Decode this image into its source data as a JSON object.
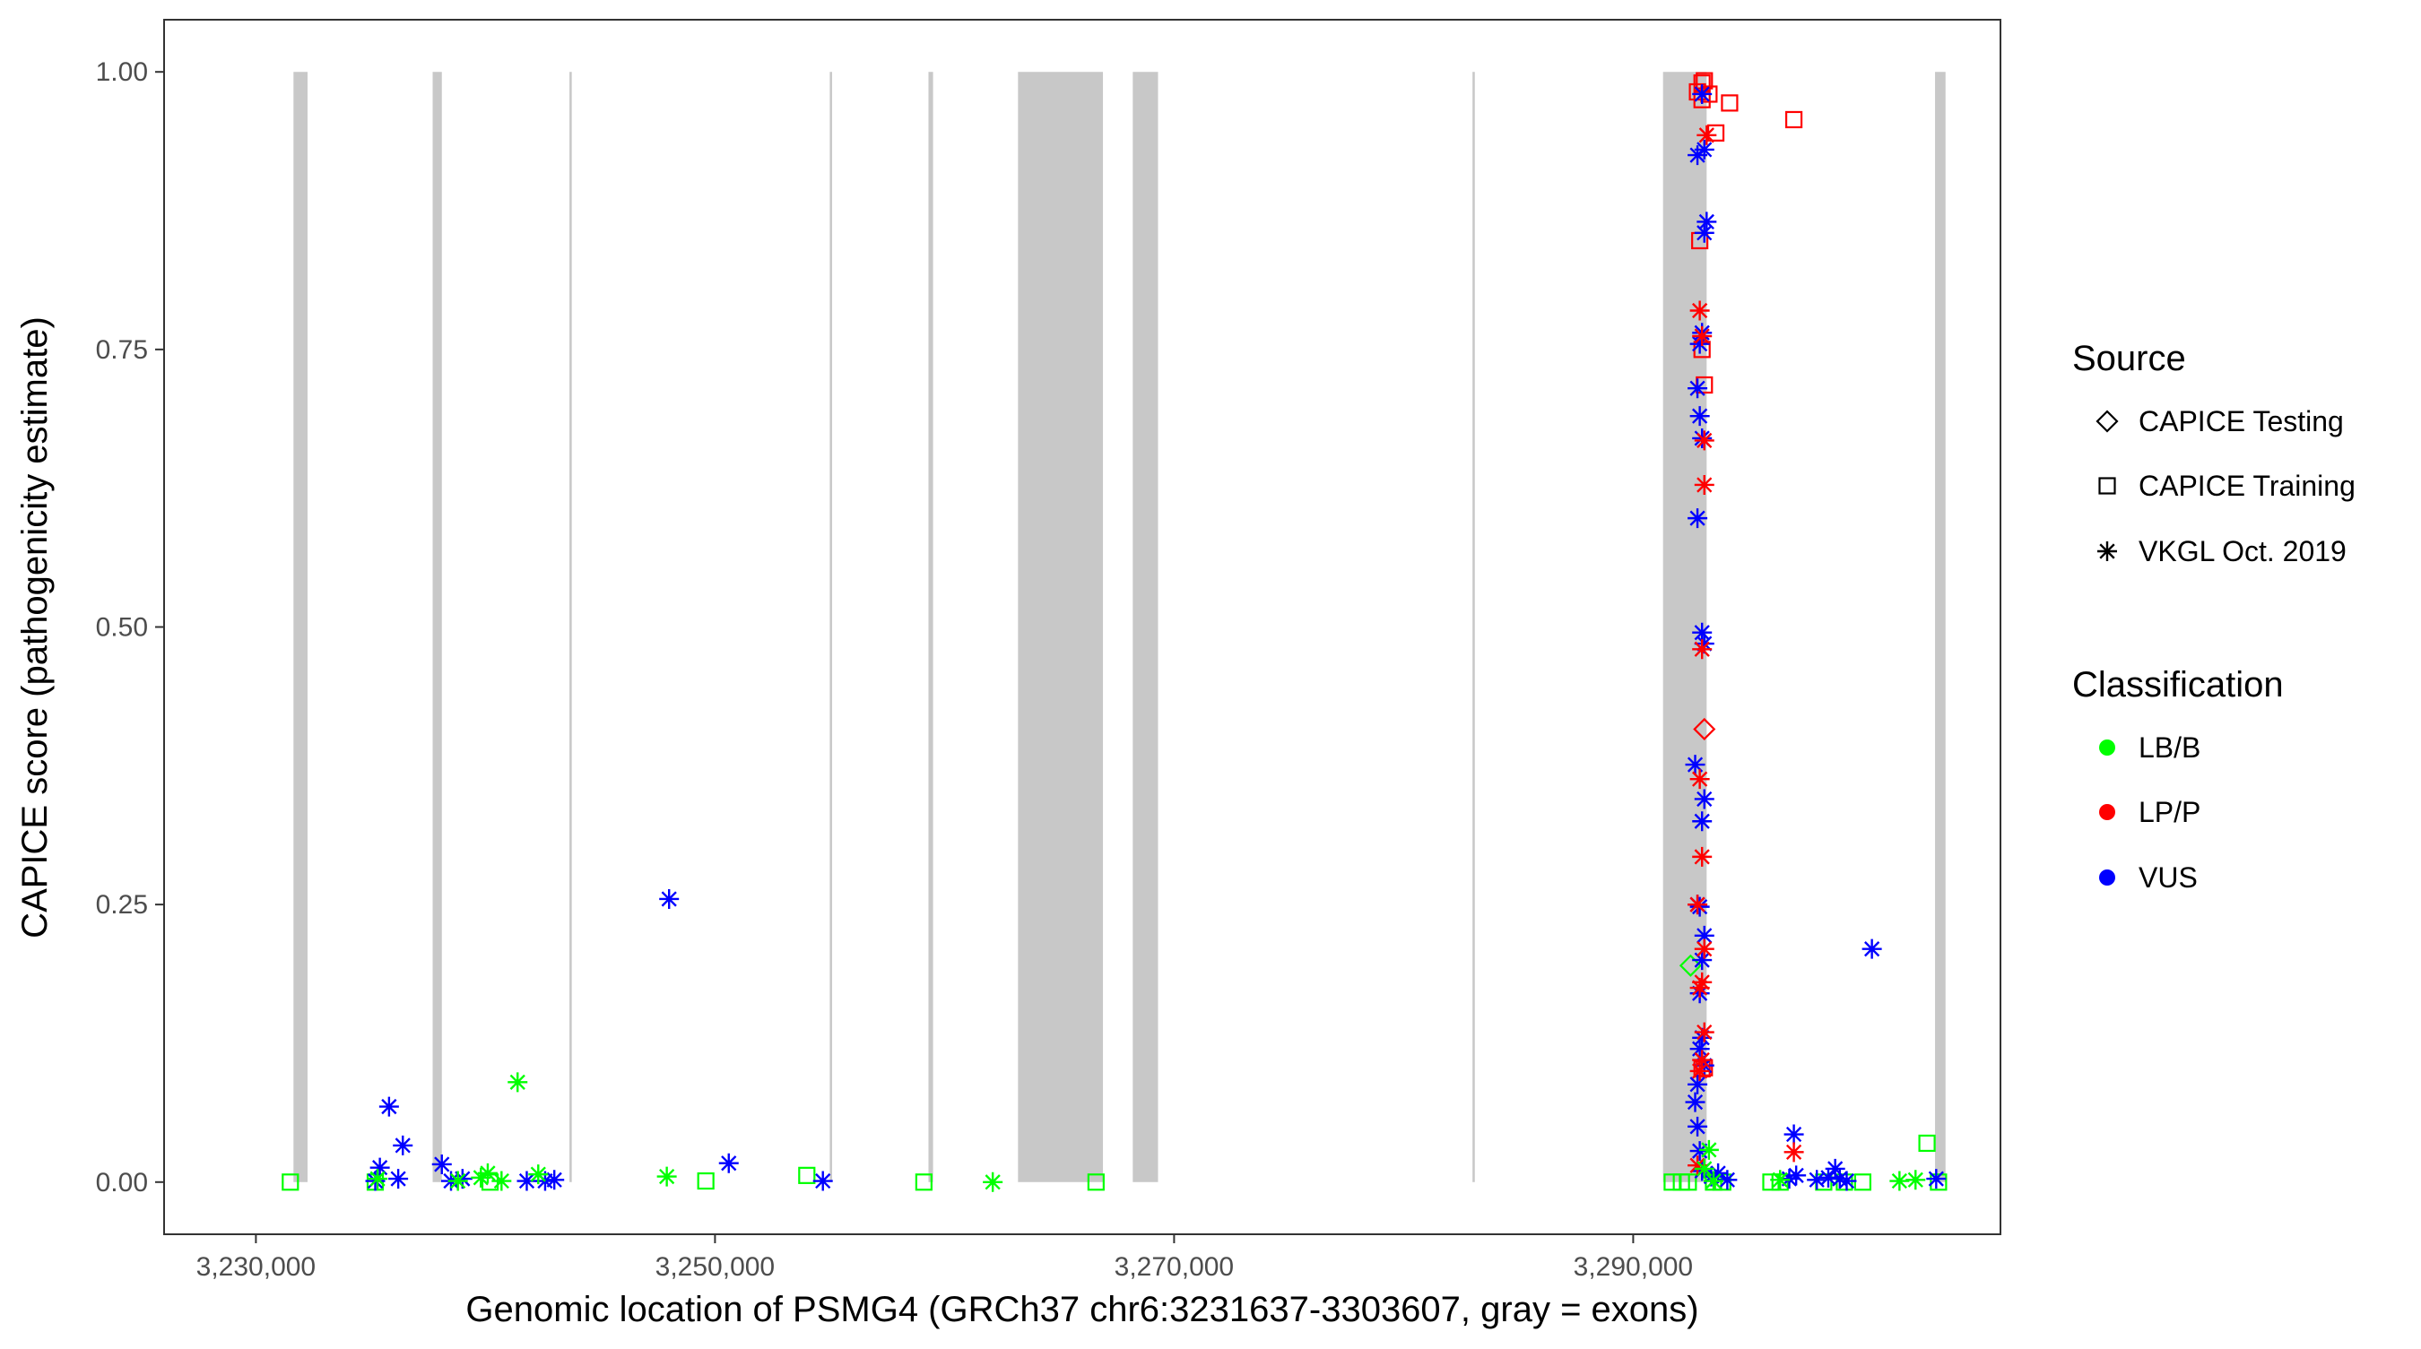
{
  "chart_data": {
    "type": "scatter",
    "xlabel": "Genomic location of PSMG4 (GRCh37 chr6:3231637-3303607, gray = exons)",
    "ylabel": "CAPICE score (pathogenicity estimate)",
    "xlim": [
      3226000,
      3306000
    ],
    "ylim": [
      -0.047,
      1.047
    ],
    "x_ticks": [
      3230000,
      3250000,
      3270000,
      3290000
    ],
    "x_tick_labels": [
      "3,230,000",
      "3,250,000",
      "3,270,000",
      "3,290,000"
    ],
    "y_ticks": [
      0,
      0.25,
      0.5,
      0.75,
      1.0
    ],
    "y_tick_labels": [
      "0.00",
      "0.25",
      "0.50",
      "0.75",
      "1.00"
    ],
    "grid": false,
    "legend_position": "right",
    "exons": [
      [
        3231637,
        3232250
      ],
      [
        3237700,
        3238100
      ],
      [
        3243660,
        3243760
      ],
      [
        3255000,
        3255100
      ],
      [
        3259300,
        3259500
      ],
      [
        3263200,
        3266900
      ],
      [
        3268200,
        3269300
      ],
      [
        3283000,
        3283100
      ],
      [
        3291300,
        3293200
      ],
      [
        3303150,
        3303607
      ]
    ],
    "legend": {
      "source_title": "Source",
      "source_items": [
        {
          "label": "CAPICE Testing",
          "shape": "diamond"
        },
        {
          "label": "CAPICE Training",
          "shape": "square"
        },
        {
          "label": "VKGL Oct. 2019",
          "shape": "asterisk"
        }
      ],
      "class_title": "Classification",
      "class_items": [
        {
          "label": "LB/B",
          "color": "#00FF00"
        },
        {
          "label": "LP/P",
          "color": "#FF0000"
        },
        {
          "label": "VUS",
          "color": "#0000FF"
        }
      ]
    },
    "series": [
      {
        "source": "VKGL Oct. 2019",
        "classification": "VUS",
        "shape": "asterisk",
        "color": "#0000FF",
        "points": [
          [
            3235800,
            0.068
          ],
          [
            3235400,
            0.013
          ],
          [
            3236400,
            0.033
          ],
          [
            3236200,
            0.003
          ],
          [
            3235200,
            0.001
          ],
          [
            3238100,
            0.016
          ],
          [
            3238500,
            0.001
          ],
          [
            3239000,
            0.003
          ],
          [
            3241800,
            0.001
          ],
          [
            3242600,
            0.001
          ],
          [
            3243000,
            0.002
          ],
          [
            3248000,
            0.255
          ],
          [
            3250600,
            0.017
          ],
          [
            3254700,
            0.001
          ],
          [
            3293000,
            0.98
          ],
          [
            3292800,
            0.925
          ],
          [
            3293100,
            0.93
          ],
          [
            3293200,
            0.865
          ],
          [
            3293100,
            0.855
          ],
          [
            3293000,
            0.765
          ],
          [
            3292900,
            0.755
          ],
          [
            3292800,
            0.715
          ],
          [
            3292900,
            0.69
          ],
          [
            3293000,
            0.67
          ],
          [
            3292800,
            0.598
          ],
          [
            3293000,
            0.495
          ],
          [
            3293100,
            0.485
          ],
          [
            3292700,
            0.376
          ],
          [
            3293100,
            0.345
          ],
          [
            3293000,
            0.325
          ],
          [
            3292800,
            0.25
          ],
          [
            3292900,
            0.248
          ],
          [
            3293100,
            0.222
          ],
          [
            3293000,
            0.2
          ],
          [
            3292900,
            0.17
          ],
          [
            3293000,
            0.13
          ],
          [
            3292900,
            0.12
          ],
          [
            3293100,
            0.105
          ],
          [
            3292800,
            0.088
          ],
          [
            3292700,
            0.072
          ],
          [
            3292800,
            0.05
          ],
          [
            3292900,
            0.028
          ],
          [
            3293000,
            0.01
          ],
          [
            3293400,
            0.005
          ],
          [
            3293700,
            0.008
          ],
          [
            3294100,
            0.002
          ],
          [
            3297000,
            0.043
          ],
          [
            3296800,
            0.003
          ],
          [
            3297100,
            0.006
          ],
          [
            3298800,
            0.012
          ],
          [
            3299000,
            0.003
          ],
          [
            3299300,
            0.001
          ],
          [
            3298500,
            0.004
          ],
          [
            3298000,
            0.002
          ],
          [
            3300400,
            0.21
          ],
          [
            3303200,
            0.003
          ]
        ]
      },
      {
        "source": "VKGL Oct. 2019",
        "classification": "LP/P",
        "shape": "asterisk",
        "color": "#FF0000",
        "points": [
          [
            3293200,
            0.943
          ],
          [
            3292900,
            0.785
          ],
          [
            3293000,
            0.762
          ],
          [
            3293100,
            0.668
          ],
          [
            3293100,
            0.628
          ],
          [
            3293000,
            0.48
          ],
          [
            3292900,
            0.363
          ],
          [
            3293000,
            0.293
          ],
          [
            3292800,
            0.25
          ],
          [
            3293100,
            0.21
          ],
          [
            3293000,
            0.18
          ],
          [
            3292900,
            0.175
          ],
          [
            3293100,
            0.135
          ],
          [
            3293000,
            0.11
          ],
          [
            3292900,
            0.1
          ],
          [
            3292800,
            0.015
          ],
          [
            3297000,
            0.027
          ]
        ]
      },
      {
        "source": "VKGL Oct. 2019",
        "classification": "LB/B",
        "shape": "asterisk",
        "color": "#00FF00",
        "points": [
          [
            3235300,
            0.003
          ],
          [
            3238800,
            0.001
          ],
          [
            3239800,
            0.004
          ],
          [
            3240100,
            0.008
          ],
          [
            3240700,
            0.001
          ],
          [
            3241400,
            0.09
          ],
          [
            3242300,
            0.007
          ],
          [
            3247900,
            0.005
          ],
          [
            3262100,
            0.0
          ],
          [
            3293300,
            0.029
          ],
          [
            3293100,
            0.012
          ],
          [
            3293500,
            0.001
          ],
          [
            3296400,
            0.002
          ],
          [
            3301600,
            0.001
          ],
          [
            3302300,
            0.002
          ]
        ]
      },
      {
        "source": "CAPICE Training",
        "classification": "LP/P",
        "shape": "square",
        "color": "#FF0000",
        "points": [
          [
            3292800,
            0.982
          ],
          [
            3293000,
            0.99
          ],
          [
            3293100,
            0.992
          ],
          [
            3293000,
            0.975
          ],
          [
            3293300,
            0.98
          ],
          [
            3294200,
            0.972
          ],
          [
            3297000,
            0.957
          ],
          [
            3293600,
            0.945
          ],
          [
            3292900,
            0.848
          ],
          [
            3293000,
            0.75
          ],
          [
            3293100,
            0.718
          ],
          [
            3293000,
            0.102
          ],
          [
            3293100,
            0.103
          ]
        ]
      },
      {
        "source": "CAPICE Training",
        "classification": "LB/B",
        "shape": "square",
        "color": "#00FF00",
        "points": [
          [
            3231500,
            0.0
          ],
          [
            3235200,
            0.0
          ],
          [
            3240200,
            0.0
          ],
          [
            3249600,
            0.001
          ],
          [
            3254000,
            0.006
          ],
          [
            3259100,
            0.0
          ],
          [
            3266600,
            0.0
          ],
          [
            3291700,
            0.0
          ],
          [
            3292100,
            0.0
          ],
          [
            3292400,
            0.0
          ],
          [
            3293500,
            0.0
          ],
          [
            3293900,
            0.0
          ],
          [
            3296000,
            0.0
          ],
          [
            3296400,
            0.0
          ],
          [
            3298300,
            0.0
          ],
          [
            3299200,
            0.0
          ],
          [
            3300000,
            0.0
          ],
          [
            3302800,
            0.035
          ],
          [
            3303300,
            0.0
          ]
        ]
      },
      {
        "source": "CAPICE Testing",
        "classification": "LP/P",
        "shape": "diamond",
        "color": "#FF0000",
        "points": [
          [
            3293100,
            0.408
          ]
        ]
      },
      {
        "source": "CAPICE Testing",
        "classification": "LB/B",
        "shape": "diamond",
        "color": "#00FF00",
        "points": [
          [
            3292500,
            0.195
          ]
        ]
      }
    ]
  }
}
